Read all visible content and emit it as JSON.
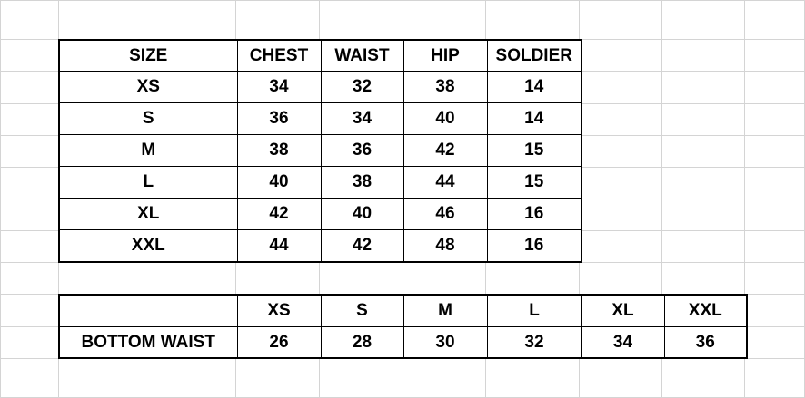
{
  "size_chart": {
    "headers": [
      "SIZE",
      "CHEST",
      "WAIST",
      "HIP",
      "SOLDIER"
    ],
    "rows": [
      [
        "XS",
        "34",
        "32",
        "38",
        "14"
      ],
      [
        "S",
        "36",
        "34",
        "40",
        "14"
      ],
      [
        "M",
        "38",
        "36",
        "42",
        "15"
      ],
      [
        "L",
        "40",
        "38",
        "44",
        "15"
      ],
      [
        "XL",
        "42",
        "40",
        "46",
        "16"
      ],
      [
        "XXL",
        "44",
        "42",
        "48",
        "16"
      ]
    ]
  },
  "bottom_chart": {
    "headers": [
      "",
      "XS",
      "S",
      "M",
      "L",
      "XL",
      "XXL"
    ],
    "row": [
      "BOTTOM WAIST",
      "26",
      "28",
      "30",
      "32",
      "34",
      "36"
    ]
  }
}
